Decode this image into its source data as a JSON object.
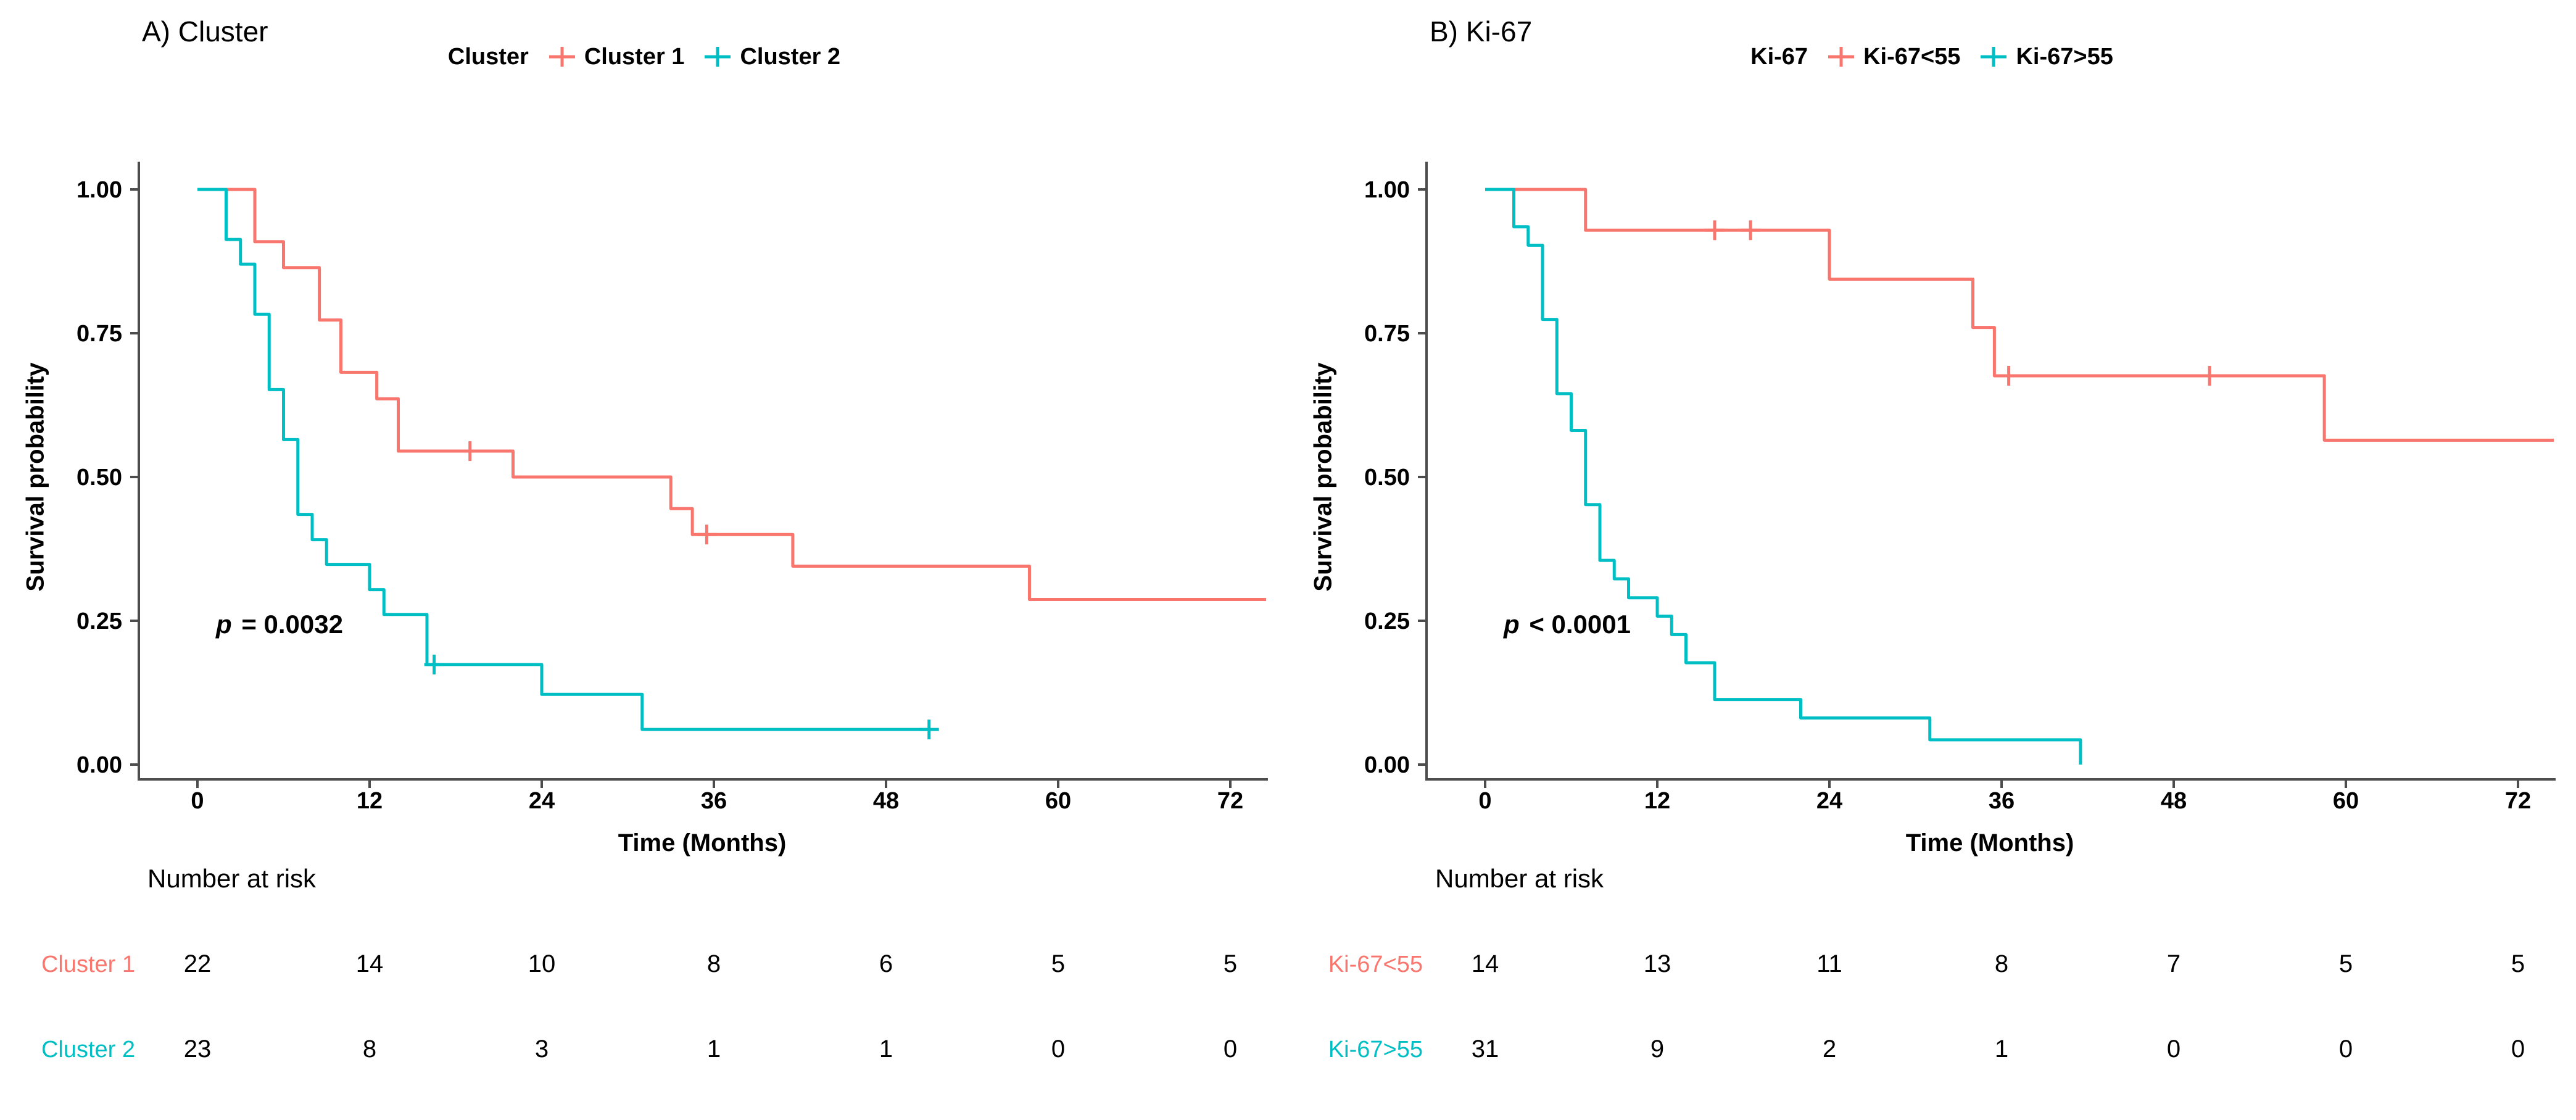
{
  "figure": {
    "background": "#ffffff",
    "axis_color": "#4d4d4d",
    "text_color": "#000000"
  },
  "chart_data": [
    {
      "id": "A",
      "type": "line",
      "subtype": "kaplan-meier-step",
      "title": "A) Cluster",
      "xlabel": "Time (Months)",
      "ylabel": "Survival probability",
      "pvalue": {
        "symbol": "p",
        "rest": " = 0.0032"
      },
      "xlim": [
        0,
        74.5
      ],
      "ylim": [
        0,
        1
      ],
      "xticks": [
        0,
        12,
        24,
        36,
        48,
        60,
        72
      ],
      "yticks": [
        "0.00",
        "0.25",
        "0.50",
        "0.75",
        "1.00"
      ],
      "grid": false,
      "legend_position": "top",
      "legend": {
        "title": "Cluster",
        "entries": [
          {
            "label": "Cluster 1",
            "color": "#F8766D"
          },
          {
            "label": "Cluster 2",
            "color": "#00BFC4"
          }
        ]
      },
      "series": [
        {
          "name": "Cluster 1",
          "color": "#F8766D",
          "steps": [
            [
              0,
              1.0
            ],
            [
              4,
              0.909
            ],
            [
              6,
              0.864
            ],
            [
              8.5,
              0.773
            ],
            [
              10,
              0.682
            ],
            [
              12.5,
              0.636
            ],
            [
              14,
              0.545
            ],
            [
              22,
              0.5
            ],
            [
              33,
              0.445
            ],
            [
              34.5,
              0.4
            ],
            [
              41.5,
              0.345
            ],
            [
              58,
              0.287
            ]
          ],
          "censors": [
            [
              19,
              0.545
            ],
            [
              35.5,
              0.4
            ]
          ],
          "end_time": 74.5
        },
        {
          "name": "Cluster 2",
          "color": "#00BFC4",
          "steps": [
            [
              0,
              1.0
            ],
            [
              2,
              0.913
            ],
            [
              3,
              0.87
            ],
            [
              4,
              0.783
            ],
            [
              5,
              0.652
            ],
            [
              6,
              0.565
            ],
            [
              7,
              0.435
            ],
            [
              8,
              0.391
            ],
            [
              9,
              0.348
            ],
            [
              12,
              0.304
            ],
            [
              13,
              0.261
            ],
            [
              16,
              0.174
            ],
            [
              24,
              0.122
            ],
            [
              31,
              0.061
            ]
          ],
          "censors": [
            [
              16.5,
              0.174
            ],
            [
              51,
              0.061
            ]
          ],
          "end_time": 51
        }
      ],
      "risk_table": {
        "header": "Number at risk",
        "times": [
          0,
          12,
          24,
          36,
          48,
          60,
          72
        ],
        "rows": [
          {
            "label": "Cluster 1",
            "color": "#F8766D",
            "counts": [
              "22",
              "14",
              "10",
              "8",
              "6",
              "5",
              "5"
            ]
          },
          {
            "label": "Cluster 2",
            "color": "#00BFC4",
            "counts": [
              "23",
              "8",
              "3",
              "1",
              "1",
              "0",
              "0"
            ]
          }
        ]
      }
    },
    {
      "id": "B",
      "type": "line",
      "subtype": "kaplan-meier-step",
      "title": "B) Ki-67",
      "xlabel": "Time (Months)",
      "ylabel": "Survival probability",
      "pvalue": {
        "symbol": "p",
        "rest": " < 0.0001"
      },
      "xlim": [
        0,
        74.5
      ],
      "ylim": [
        0,
        1
      ],
      "xticks": [
        0,
        12,
        24,
        36,
        48,
        60,
        72
      ],
      "yticks": [
        "0.00",
        "0.25",
        "0.50",
        "0.75",
        "1.00"
      ],
      "grid": false,
      "legend_position": "top",
      "legend": {
        "title": "Ki-67",
        "entries": [
          {
            "label": "Ki-67<55",
            "color": "#F8766D"
          },
          {
            "label": "Ki-67>55",
            "color": "#00BFC4"
          }
        ]
      },
      "series": [
        {
          "name": "Ki-67<55",
          "color": "#F8766D",
          "steps": [
            [
              0,
              1.0
            ],
            [
              7,
              0.929
            ],
            [
              24,
              0.844
            ],
            [
              34,
              0.76
            ],
            [
              35.5,
              0.676
            ],
            [
              58.5,
              0.564
            ]
          ],
          "censors": [
            [
              16,
              0.929
            ],
            [
              18.5,
              0.929
            ],
            [
              36.5,
              0.676
            ],
            [
              50.5,
              0.676
            ]
          ],
          "end_time": 74.5
        },
        {
          "name": "Ki-67>55",
          "color": "#00BFC4",
          "steps": [
            [
              0,
              1.0
            ],
            [
              2,
              0.935
            ],
            [
              3,
              0.903
            ],
            [
              4,
              0.774
            ],
            [
              5,
              0.645
            ],
            [
              6,
              0.581
            ],
            [
              7,
              0.452
            ],
            [
              8,
              0.355
            ],
            [
              9,
              0.323
            ],
            [
              10,
              0.29
            ],
            [
              12,
              0.258
            ],
            [
              13,
              0.226
            ],
            [
              14,
              0.177
            ],
            [
              16,
              0.113
            ],
            [
              22,
              0.081
            ],
            [
              31,
              0.043
            ],
            [
              41.5,
              0.0
            ]
          ],
          "censors": [],
          "end_time": 41.5
        }
      ],
      "risk_table": {
        "header": "Number at risk",
        "times": [
          0,
          12,
          24,
          36,
          48,
          60,
          72
        ],
        "rows": [
          {
            "label": "Ki-67<55",
            "color": "#F8766D",
            "counts": [
              "14",
              "13",
              "11",
              "8",
              "7",
              "5",
              "5"
            ]
          },
          {
            "label": "Ki-67>55",
            "color": "#00BFC4",
            "counts": [
              "31",
              "9",
              "2",
              "1",
              "0",
              "0",
              "0"
            ]
          }
        ]
      }
    }
  ]
}
